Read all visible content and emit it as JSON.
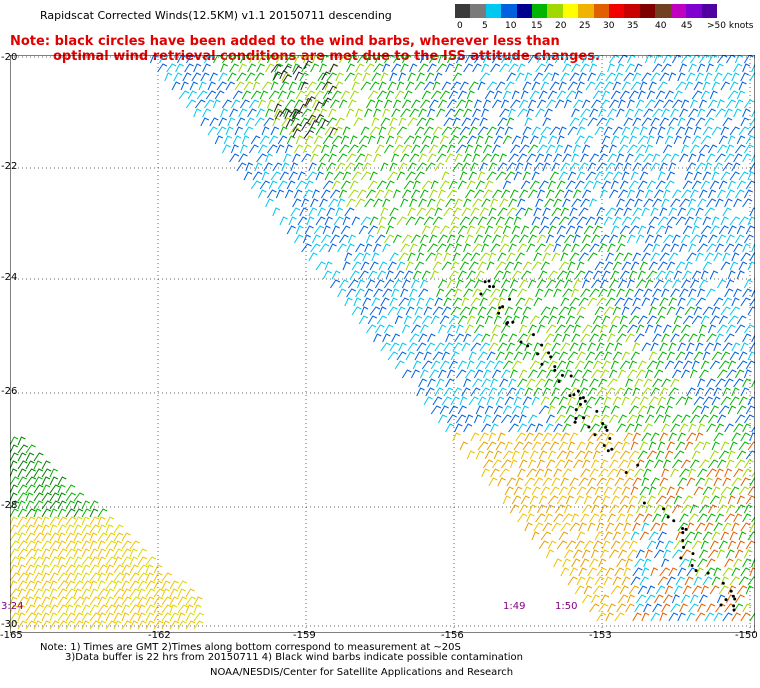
{
  "header": {
    "title": "Rapidscat Corrected Winds(12.5KM) v1.1 20150711 descending",
    "note_line1": "Note: black circles have been added to the wind barbs, wherever less than",
    "note_line2": "optimal wind retrieval conditions are met due to the ISS attitude changes."
  },
  "legend": {
    "labels": [
      "0",
      "5",
      "10",
      "15",
      "20",
      "25",
      "30",
      "35",
      "40",
      "45",
      ">50 knots"
    ],
    "colors": [
      "#3a3a3a",
      "#7a7a7a",
      "#00c8f0",
      "#0060e0",
      "#000090",
      "#00b400",
      "#a0d800",
      "#ffff00",
      "#f0b400",
      "#e06000",
      "#f00000",
      "#c80000",
      "#800000",
      "#704020",
      "#c000c0",
      "#8000d0",
      "#5000a0"
    ]
  },
  "map": {
    "y_labels": [
      "-20",
      "-22",
      "-24",
      "-26",
      "-28",
      "-30"
    ],
    "x_labels": [
      "-165",
      "-162",
      "-159",
      "-156",
      "-153",
      "-150"
    ],
    "time_labels": [
      "3:24",
      "1:49",
      "1:50"
    ]
  },
  "footer": {
    "line1": "Note: 1) Times are GMT 2)Times along bottom correspond to measurement at ~20S",
    "line2": "3)Data buffer is 22 hrs from 20150711 4) Black wind barbs indicate possible contamination",
    "line3": "NOAA/NESDIS/Center for Satellite Applications and Research"
  }
}
